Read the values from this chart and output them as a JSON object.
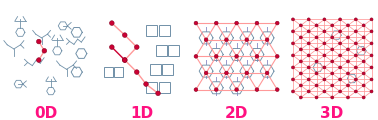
{
  "panels": [
    {
      "label": "0D"
    },
    {
      "label": "1D"
    },
    {
      "label": "2D"
    },
    {
      "label": "3D"
    }
  ],
  "label_color": "#FF1080",
  "label_fontsize": 11,
  "label_fontweight": "bold",
  "background_color": "#ffffff",
  "node_color": "#CC0033",
  "node_edge_color": "#880022",
  "line_solid": "#CC0033",
  "line_light": "#FF9999",
  "mol_color": "#7090A8",
  "mol_lw": 0.7,
  "figwidth": 3.78,
  "figheight": 1.2,
  "dpi": 100
}
